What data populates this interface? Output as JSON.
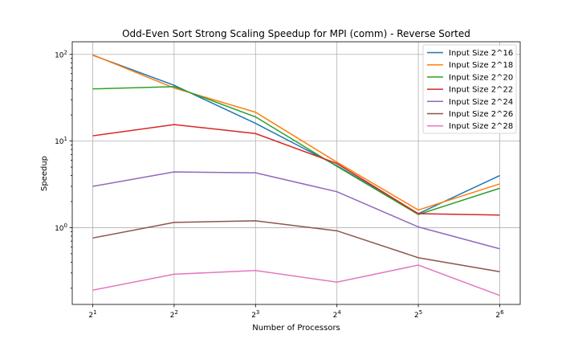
{
  "chart_data": {
    "type": "line",
    "title": "Odd-Even Sort Strong Scaling Speedup for MPI (comm) - Reverse Sorted",
    "xlabel": "Number of Processors",
    "ylabel": "Speedup",
    "x": [
      2,
      4,
      8,
      16,
      32,
      64
    ],
    "x_tick_base": "2",
    "x_tick_exponents": [
      "1",
      "2",
      "3",
      "4",
      "5",
      "6"
    ],
    "x_scale": "log2",
    "y_scale": "log",
    "y_ticks": [
      {
        "base": "10",
        "exp": "0",
        "value": 1
      },
      {
        "base": "10",
        "exp": "1",
        "value": 10
      },
      {
        "base": "10",
        "exp": "2",
        "value": 100
      }
    ],
    "ylim": [
      0.13,
      140
    ],
    "grid": true,
    "legend_position": "top-right",
    "series": [
      {
        "name": "Input Size 2^16",
        "color": "#1f77b4",
        "values": [
          98,
          44,
          16,
          5.2,
          1.45,
          4.0
        ]
      },
      {
        "name": "Input Size 2^18",
        "color": "#ff7f0e",
        "values": [
          99,
          41,
          21.5,
          5.7,
          1.6,
          3.2
        ]
      },
      {
        "name": "Input Size 2^20",
        "color": "#2ca02c",
        "values": [
          40,
          42.5,
          19,
          5.1,
          1.42,
          2.85
        ]
      },
      {
        "name": "Input Size 2^22",
        "color": "#d62728",
        "values": [
          11.5,
          15.5,
          12.2,
          5.5,
          1.45,
          1.4
        ]
      },
      {
        "name": "Input Size 2^24",
        "color": "#9467bd",
        "values": [
          3.0,
          4.4,
          4.3,
          2.6,
          1.02,
          0.57
        ]
      },
      {
        "name": "Input Size 2^26",
        "color": "#8c564b",
        "values": [
          0.76,
          1.15,
          1.2,
          0.92,
          0.45,
          0.31
        ]
      },
      {
        "name": "Input Size 2^28",
        "color": "#e377c2",
        "values": [
          0.19,
          0.29,
          0.32,
          0.235,
          0.37,
          0.165
        ]
      }
    ]
  }
}
